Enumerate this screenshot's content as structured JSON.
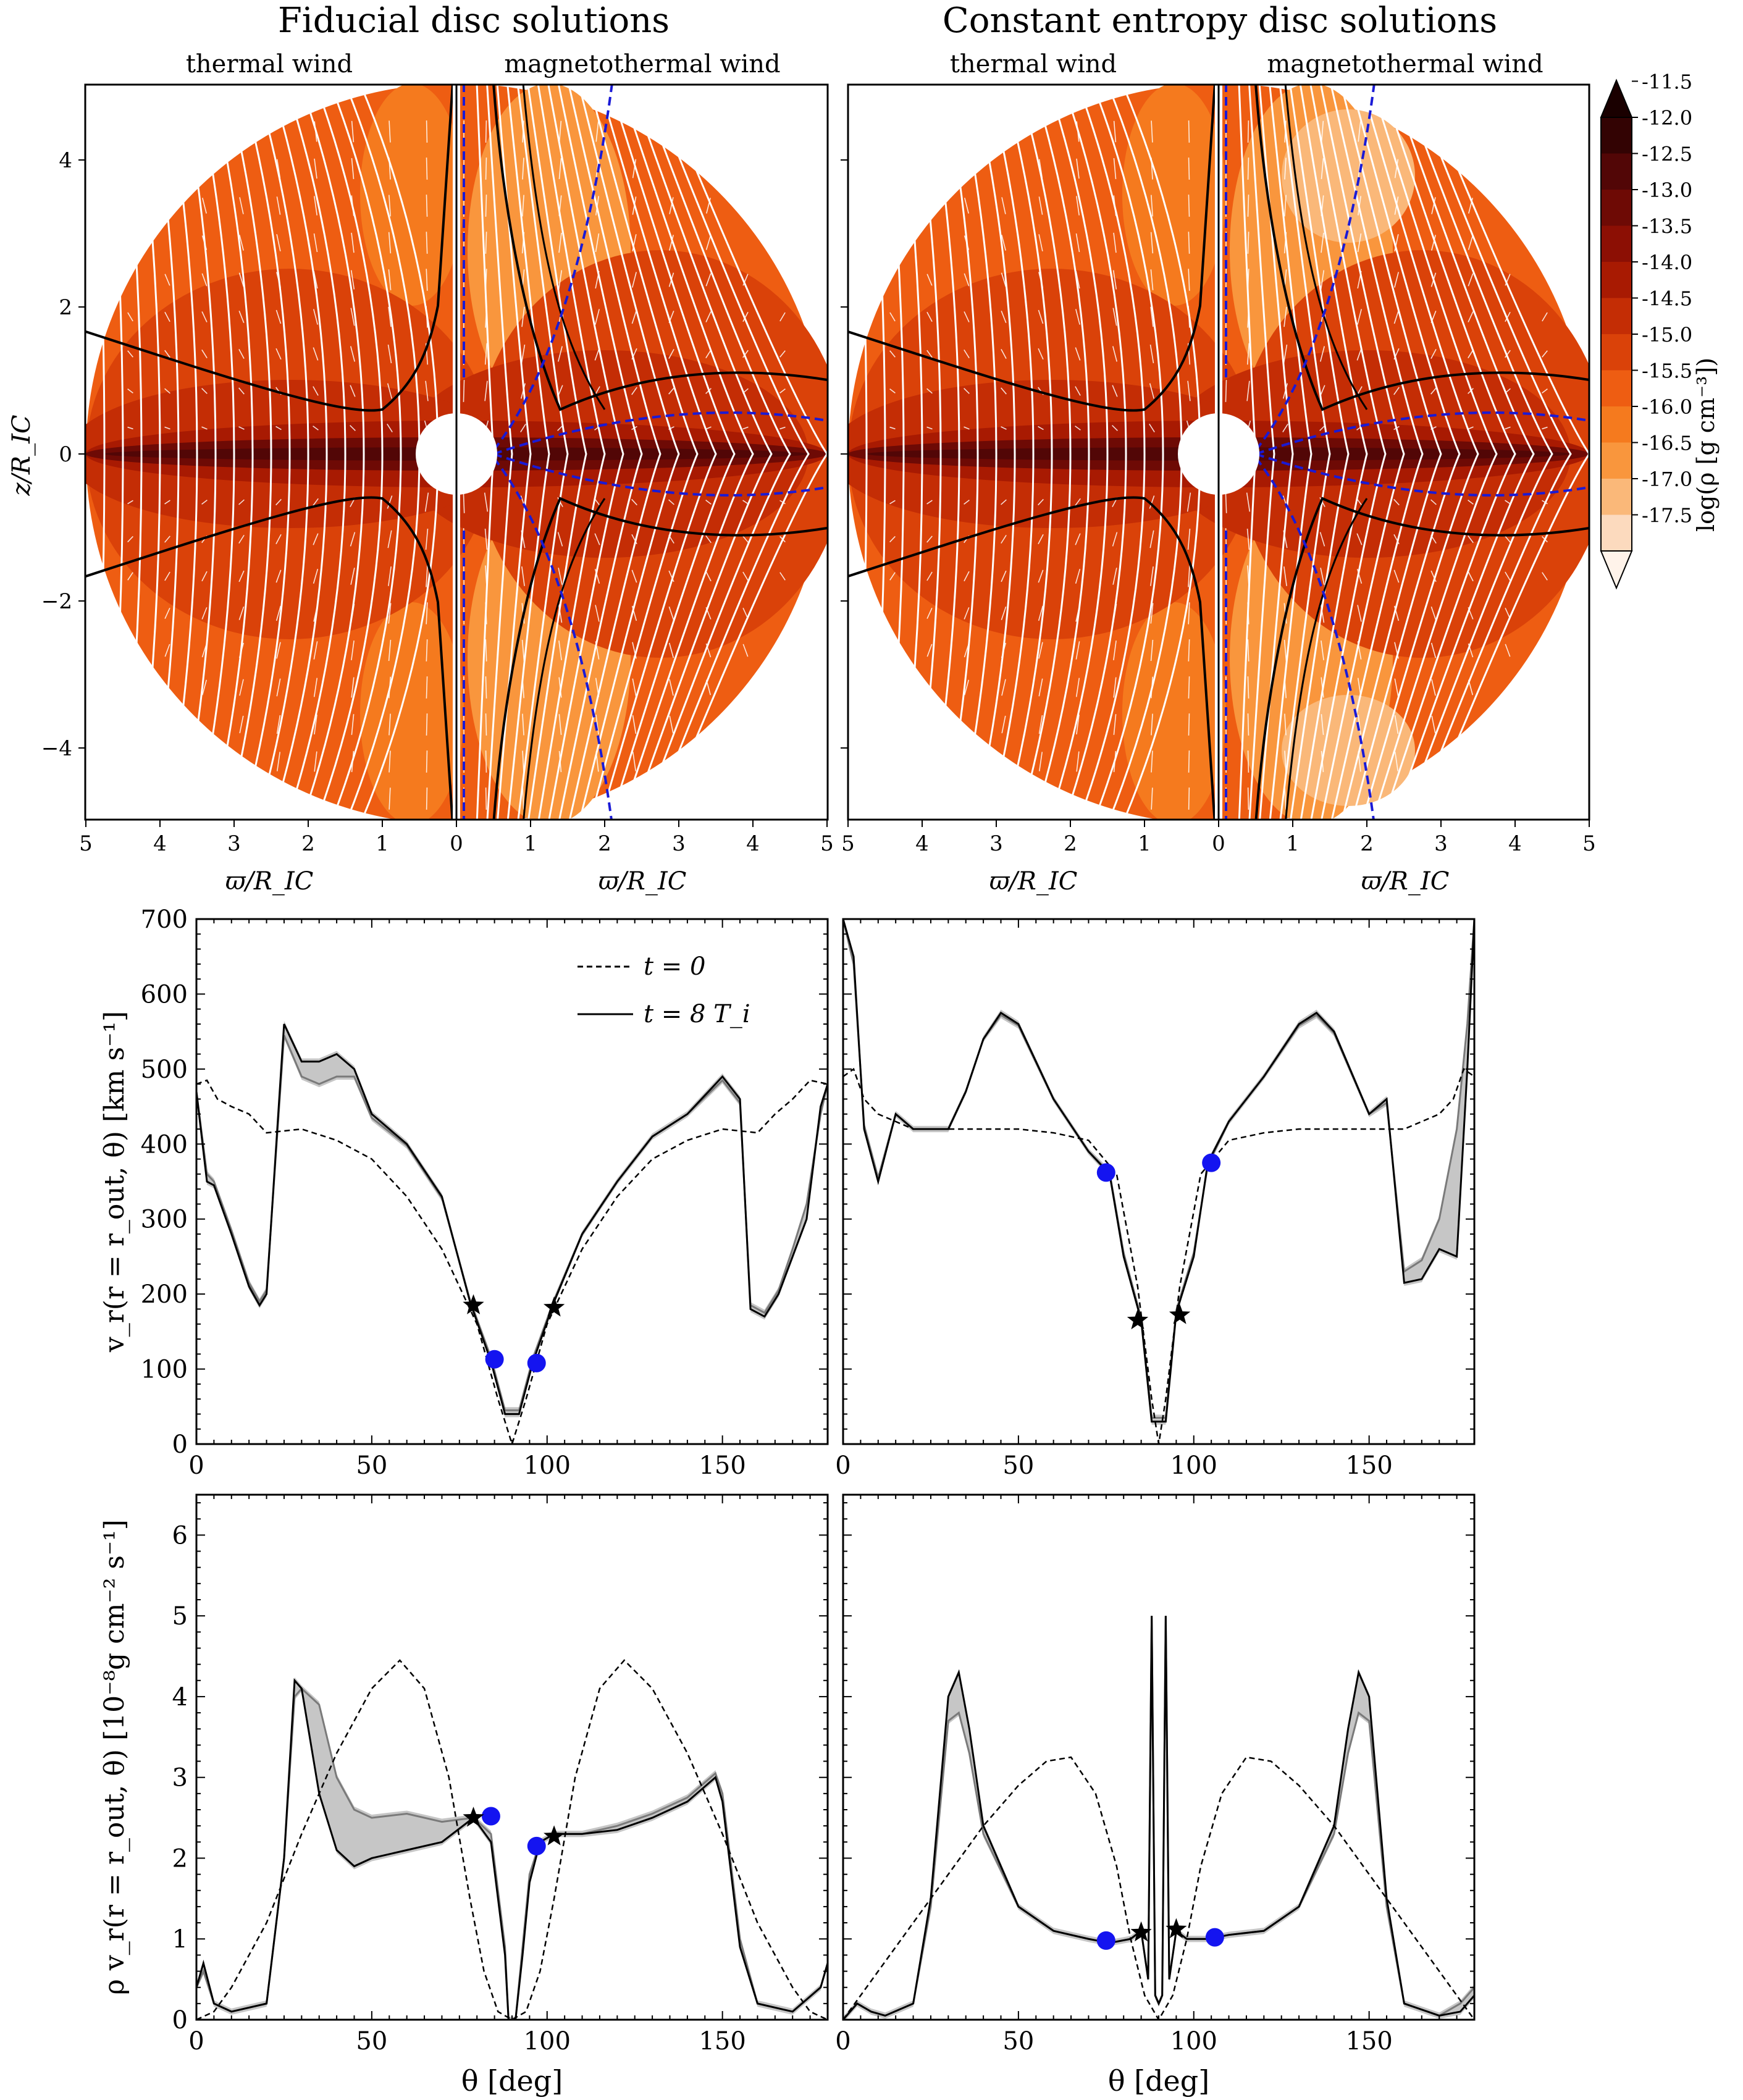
{
  "chart_data": [
    {
      "type": "heatmap",
      "title": "Fiducial disc solutions",
      "halves": {
        "left": "thermal wind",
        "right": "magnetothermal wind"
      },
      "xlabel": "ϖ/R_IC",
      "ylabel": "z/R_IC",
      "xticks_left": [
        "5",
        "4",
        "3",
        "2",
        "1",
        "0"
      ],
      "xticks_right": [
        "0",
        "1",
        "2",
        "3",
        "4",
        "5"
      ],
      "yticks": [
        "4",
        "2",
        "0",
        "−2",
        "−4"
      ],
      "xlim": [
        0,
        5
      ],
      "ylim": [
        -5,
        5
      ]
    },
    {
      "type": "heatmap",
      "title": "Constant entropy disc solutions",
      "halves": {
        "left": "thermal wind",
        "right": "magnetothermal wind"
      },
      "xlabel": "ϖ/R_IC",
      "xticks_left": [
        "5",
        "4",
        "3",
        "2",
        "1",
        "0"
      ],
      "xticks_right": [
        "0",
        "1",
        "2",
        "3",
        "4",
        "5"
      ],
      "xlim": [
        0,
        5
      ],
      "ylim": [
        -5,
        5
      ]
    },
    {
      "type": "line",
      "ylabel": "v_r(r = r_out, θ) [km s⁻¹]",
      "xlim": [
        0,
        180
      ],
      "ylim": [
        0,
        700
      ],
      "xticks": [
        "0",
        "50",
        "100",
        "150"
      ],
      "yticks": [
        "0",
        "100",
        "200",
        "300",
        "400",
        "500",
        "600",
        "700"
      ],
      "legend": {
        "placement": "top-center",
        "entries": [
          "t = 0",
          "t = 8 T_i"
        ]
      },
      "series": [
        {
          "name": "t = 0",
          "style": "dashed",
          "x": [
            0,
            3,
            6,
            10,
            15,
            20,
            30,
            40,
            50,
            60,
            70,
            80,
            86,
            90,
            94,
            100,
            110,
            120,
            130,
            140,
            150,
            160,
            165,
            170,
            175,
            180
          ],
          "y": [
            480,
            485,
            460,
            450,
            440,
            415,
            420,
            405,
            380,
            330,
            260,
            160,
            60,
            0,
            60,
            160,
            260,
            330,
            380,
            405,
            420,
            415,
            440,
            460,
            485,
            480
          ]
        },
        {
          "name": "t = 8 T_i",
          "style": "solid",
          "x": [
            0,
            3,
            5,
            10,
            15,
            18,
            20,
            25,
            30,
            35,
            40,
            45,
            50,
            60,
            70,
            78,
            84,
            88,
            92,
            96,
            102,
            110,
            120,
            130,
            140,
            150,
            155,
            158,
            162,
            166,
            170,
            174,
            178,
            180
          ],
          "y": [
            470,
            350,
            345,
            280,
            210,
            185,
            200,
            560,
            510,
            510,
            520,
            500,
            440,
            400,
            330,
            190,
            110,
            40,
            40,
            110,
            190,
            280,
            350,
            410,
            440,
            490,
            460,
            180,
            170,
            200,
            250,
            300,
            450,
            480
          ]
        },
        {
          "name": "",
          "style": "grey band",
          "x": [
            0,
            3,
            5,
            10,
            15,
            18,
            20,
            25,
            30,
            35,
            40,
            45,
            50,
            60,
            70,
            78,
            84,
            88,
            92,
            96,
            102,
            110,
            120,
            130,
            140,
            150,
            155,
            158,
            162,
            166,
            170,
            174,
            178,
            180
          ],
          "y": [
            470,
            360,
            350,
            285,
            215,
            190,
            205,
            545,
            490,
            480,
            490,
            490,
            435,
            398,
            328,
            192,
            115,
            45,
            45,
            115,
            192,
            280,
            350,
            410,
            440,
            485,
            455,
            185,
            175,
            205,
            260,
            320,
            440,
            480
          ]
        }
      ],
      "markers": {
        "stars": [
          [
            79,
            185
          ],
          [
            102,
            182
          ]
        ],
        "circles": [
          [
            85,
            113
          ],
          [
            97,
            108
          ]
        ]
      }
    },
    {
      "type": "line",
      "xlim": [
        0,
        180
      ],
      "ylim": [
        0,
        700
      ],
      "xticks": [
        "0",
        "50",
        "100",
        "150"
      ],
      "series": [
        {
          "name": "t = 0",
          "style": "dashed",
          "x": [
            0,
            3,
            6,
            10,
            20,
            30,
            40,
            50,
            60,
            70,
            78,
            84,
            88,
            90,
            92,
            96,
            102,
            110,
            120,
            130,
            140,
            150,
            160,
            170,
            174,
            177,
            180
          ],
          "y": [
            490,
            500,
            460,
            440,
            420,
            420,
            420,
            420,
            415,
            405,
            360,
            210,
            60,
            0,
            60,
            210,
            360,
            405,
            415,
            420,
            420,
            420,
            420,
            440,
            460,
            500,
            490
          ]
        },
        {
          "name": "t = 8 T_i",
          "style": "solid",
          "x": [
            0,
            3,
            6,
            10,
            15,
            20,
            25,
            30,
            35,
            40,
            45,
            50,
            60,
            70,
            76,
            80,
            85,
            88,
            92,
            95,
            100,
            104,
            110,
            120,
            130,
            135,
            140,
            150,
            155,
            160,
            165,
            170,
            175,
            178,
            180
          ],
          "y": [
            700,
            650,
            420,
            350,
            440,
            420,
            420,
            420,
            470,
            540,
            575,
            560,
            460,
            390,
            360,
            250,
            165,
            30,
            30,
            175,
            250,
            375,
            430,
            490,
            560,
            575,
            550,
            440,
            460,
            215,
            220,
            260,
            250,
            500,
            700
          ]
        },
        {
          "name": "",
          "style": "grey band",
          "x": [
            0,
            3,
            6,
            10,
            15,
            20,
            25,
            30,
            35,
            40,
            45,
            50,
            60,
            70,
            76,
            80,
            85,
            88,
            92,
            95,
            100,
            104,
            110,
            120,
            130,
            135,
            140,
            150,
            155,
            160,
            165,
            170,
            175,
            178,
            180
          ],
          "y": [
            700,
            640,
            425,
            355,
            440,
            420,
            420,
            420,
            470,
            540,
            572,
            558,
            460,
            390,
            362,
            255,
            168,
            35,
            35,
            178,
            255,
            372,
            430,
            490,
            558,
            572,
            548,
            440,
            455,
            230,
            245,
            300,
            420,
            560,
            700
          ]
        }
      ],
      "markers": {
        "stars": [
          [
            84,
            165
          ],
          [
            96,
            172
          ]
        ],
        "circles": [
          [
            75,
            362
          ],
          [
            105,
            375
          ]
        ]
      }
    },
    {
      "type": "line",
      "xlabel": "θ [deg]",
      "ylabel": "ρ v_r(r = r_out, θ) [10⁻⁸g cm⁻² s⁻¹]",
      "xlim": [
        0,
        180
      ],
      "ylim": [
        0,
        6.5
      ],
      "xticks": [
        "0",
        "50",
        "100",
        "150"
      ],
      "yticks": [
        "0",
        "1",
        "2",
        "3",
        "4",
        "5",
        "6"
      ],
      "series": [
        {
          "name": "t = 0",
          "style": "dashed",
          "x": [
            0,
            5,
            10,
            20,
            30,
            40,
            50,
            58,
            65,
            72,
            78,
            82,
            86,
            90,
            94,
            98,
            102,
            108,
            115,
            122,
            130,
            140,
            150,
            160,
            170,
            175,
            180
          ],
          "y": [
            0,
            0.1,
            0.4,
            1.2,
            2.3,
            3.3,
            4.1,
            4.45,
            4.1,
            3.0,
            1.5,
            0.6,
            0.1,
            0,
            0.1,
            0.6,
            1.5,
            3.0,
            4.1,
            4.45,
            4.1,
            3.3,
            2.3,
            1.2,
            0.4,
            0.1,
            0
          ]
        },
        {
          "name": "t = 8 T_i",
          "style": "solid",
          "x": [
            0,
            2,
            5,
            10,
            20,
            25,
            28,
            30,
            35,
            40,
            45,
            50,
            60,
            70,
            79,
            84,
            86,
            88,
            89,
            91,
            93,
            95,
            98,
            102,
            110,
            120,
            130,
            140,
            148,
            150,
            155,
            160,
            170,
            178,
            180
          ],
          "y": [
            0.4,
            0.7,
            0.2,
            0.1,
            0.2,
            2.0,
            4.2,
            4.1,
            2.8,
            2.1,
            1.9,
            2.0,
            2.1,
            2.2,
            2.5,
            2.2,
            1.5,
            0.8,
            0,
            0,
            0.8,
            1.7,
            2.2,
            2.3,
            2.3,
            2.35,
            2.5,
            2.7,
            3.0,
            2.7,
            0.9,
            0.2,
            0.1,
            0.4,
            0.7
          ]
        },
        {
          "name": "",
          "style": "grey band",
          "x": [
            0,
            2,
            5,
            10,
            20,
            25,
            28,
            30,
            35,
            40,
            45,
            50,
            60,
            70,
            79,
            84,
            86,
            88,
            89,
            91,
            93,
            95,
            98,
            102,
            110,
            120,
            130,
            140,
            148,
            150,
            155,
            160,
            170,
            178,
            180
          ],
          "y": [
            0.4,
            0.6,
            0.2,
            0.1,
            0.2,
            2.0,
            4.0,
            4.1,
            3.9,
            3.0,
            2.6,
            2.5,
            2.55,
            2.45,
            2.5,
            2.3,
            1.6,
            0.9,
            0,
            0,
            0.9,
            1.8,
            2.2,
            2.3,
            2.3,
            2.4,
            2.55,
            2.75,
            3.05,
            2.8,
            1.0,
            0.2,
            0.1,
            0.4,
            0.7
          ]
        }
      ],
      "markers": {
        "stars": [
          [
            79,
            2.5
          ],
          [
            102,
            2.27
          ]
        ],
        "circles": [
          [
            84,
            2.52
          ],
          [
            97,
            2.15
          ]
        ]
      }
    },
    {
      "type": "line",
      "xlabel": "θ [deg]",
      "xlim": [
        0,
        180
      ],
      "ylim": [
        0,
        6.5
      ],
      "xticks": [
        "0",
        "50",
        "100",
        "150"
      ],
      "series": [
        {
          "name": "t = 0",
          "style": "dashed",
          "x": [
            0,
            5,
            10,
            20,
            30,
            40,
            50,
            58,
            65,
            72,
            78,
            82,
            86,
            90,
            94,
            98,
            102,
            108,
            115,
            122,
            130,
            140,
            150,
            160,
            170,
            175,
            180
          ],
          "y": [
            0,
            0.3,
            0.6,
            1.2,
            1.8,
            2.4,
            2.9,
            3.2,
            3.25,
            2.8,
            1.9,
            1.0,
            0.3,
            0,
            0.3,
            1.0,
            1.9,
            2.8,
            3.25,
            3.2,
            2.9,
            2.4,
            1.8,
            1.2,
            0.6,
            0.3,
            0
          ]
        },
        {
          "name": "t = 8 T_i",
          "style": "solid",
          "x": [
            0,
            4,
            8,
            12,
            20,
            25,
            30,
            33,
            36,
            40,
            50,
            60,
            70,
            76,
            82,
            85,
            87,
            88,
            89,
            90,
            91,
            92,
            93,
            95,
            98,
            104,
            110,
            120,
            130,
            140,
            144,
            147,
            150,
            155,
            160,
            170,
            176,
            180
          ],
          "y": [
            0,
            0.2,
            0.1,
            0.05,
            0.2,
            1.5,
            4.0,
            4.3,
            3.6,
            2.4,
            1.4,
            1.1,
            1.0,
            0.95,
            1.0,
            1.1,
            0.5,
            5.0,
            0.3,
            0.2,
            0.3,
            5.0,
            0.5,
            1.1,
            1.0,
            1.0,
            1.05,
            1.1,
            1.4,
            2.4,
            3.6,
            4.3,
            4.0,
            1.5,
            0.2,
            0.05,
            0.1,
            0.3
          ]
        },
        {
          "name": "",
          "style": "grey band",
          "x": [
            0,
            4,
            8,
            12,
            20,
            25,
            30,
            33,
            36,
            40,
            50,
            60,
            70,
            76,
            82,
            85,
            87,
            88,
            89,
            90,
            91,
            92,
            93,
            95,
            98,
            104,
            110,
            120,
            130,
            140,
            144,
            147,
            150,
            155,
            160,
            170,
            176,
            180
          ],
          "y": [
            0,
            0.2,
            0.1,
            0.05,
            0.2,
            1.4,
            3.7,
            3.8,
            3.3,
            2.3,
            1.4,
            1.1,
            1.0,
            0.95,
            1.0,
            1.1,
            0.5,
            5.0,
            0.3,
            0.2,
            0.3,
            5.0,
            0.5,
            1.1,
            1.0,
            1.0,
            1.05,
            1.1,
            1.4,
            2.3,
            3.3,
            3.8,
            3.7,
            1.4,
            0.2,
            0.05,
            0.2,
            0.4
          ]
        }
      ],
      "markers": {
        "stars": [
          [
            85,
            1.08
          ],
          [
            95,
            1.12
          ]
        ],
        "circles": [
          [
            75,
            0.98
          ],
          [
            106,
            1.02
          ]
        ]
      }
    }
  ],
  "colorbar": {
    "label": "log(ρ [g cm⁻³])",
    "levels": [
      "-11.5",
      "-12.0",
      "-12.5",
      "-13.0",
      "-13.5",
      "-14.0",
      "-14.5",
      "-15.0",
      "-15.5",
      "-16.0",
      "-16.5",
      "-17.0",
      "-17.5"
    ],
    "colors": [
      "#1a0000",
      "#330303",
      "#520606",
      "#6e0a05",
      "#8c0f04",
      "#a81a02",
      "#c42d05",
      "#da4209",
      "#ee5d12",
      "#f57a1e",
      "#f9963d",
      "#fab879",
      "#fcdabe",
      "#fff3ea"
    ]
  },
  "legend_styles": {
    "star_color": "#000000",
    "circle_color": "#1414f0",
    "band_color": "#c6c6c6",
    "field_line_color": "#ffffff",
    "alfven_color": "#1a1ad6"
  }
}
